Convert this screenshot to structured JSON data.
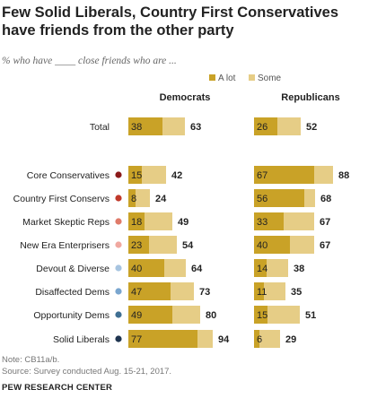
{
  "chart_data": {
    "type": "bar",
    "title": "Few Solid Liberals, Country First Conservatives have friends from the other party",
    "subtitle": "% who have ____ close friends who are ...",
    "legend": [
      "A lot",
      "Some"
    ],
    "groups": [
      "Democrats",
      "Republicans"
    ],
    "categories": [
      {
        "label": "Total",
        "dot": null
      },
      {
        "label": "Core Conservatives",
        "dot": "#8b1a1a"
      },
      {
        "label": "Country First Conservs",
        "dot": "#c0392b"
      },
      {
        "label": "Market Skeptic Reps",
        "dot": "#e07b6a"
      },
      {
        "label": "New Era Enterprisers",
        "dot": "#f0a8a0"
      },
      {
        "label": "Devout & Diverse",
        "dot": "#a7c4e0"
      },
      {
        "label": "Disaffected Dems",
        "dot": "#7aa6cf"
      },
      {
        "label": "Opportunity Dems",
        "dot": "#3f6f93"
      },
      {
        "label": "Solid Liberals",
        "dot": "#1f3550"
      }
    ],
    "series": {
      "Democrats": {
        "a_lot": [
          38,
          15,
          8,
          18,
          23,
          40,
          47,
          49,
          77
        ],
        "total": [
          63,
          42,
          24,
          49,
          54,
          64,
          73,
          80,
          94
        ]
      },
      "Republicans": {
        "a_lot": [
          26,
          67,
          56,
          33,
          40,
          14,
          11,
          15,
          6
        ],
        "total": [
          52,
          88,
          68,
          67,
          67,
          38,
          35,
          51,
          29
        ]
      }
    },
    "colors": {
      "a_lot": "#c9a227",
      "some": "#e6cd86"
    }
  },
  "footer": {
    "note": "Note: CB11a/b.",
    "source": "Source: Survey conducted Aug. 15-21, 2017.",
    "brand": "PEW RESEARCH CENTER"
  }
}
